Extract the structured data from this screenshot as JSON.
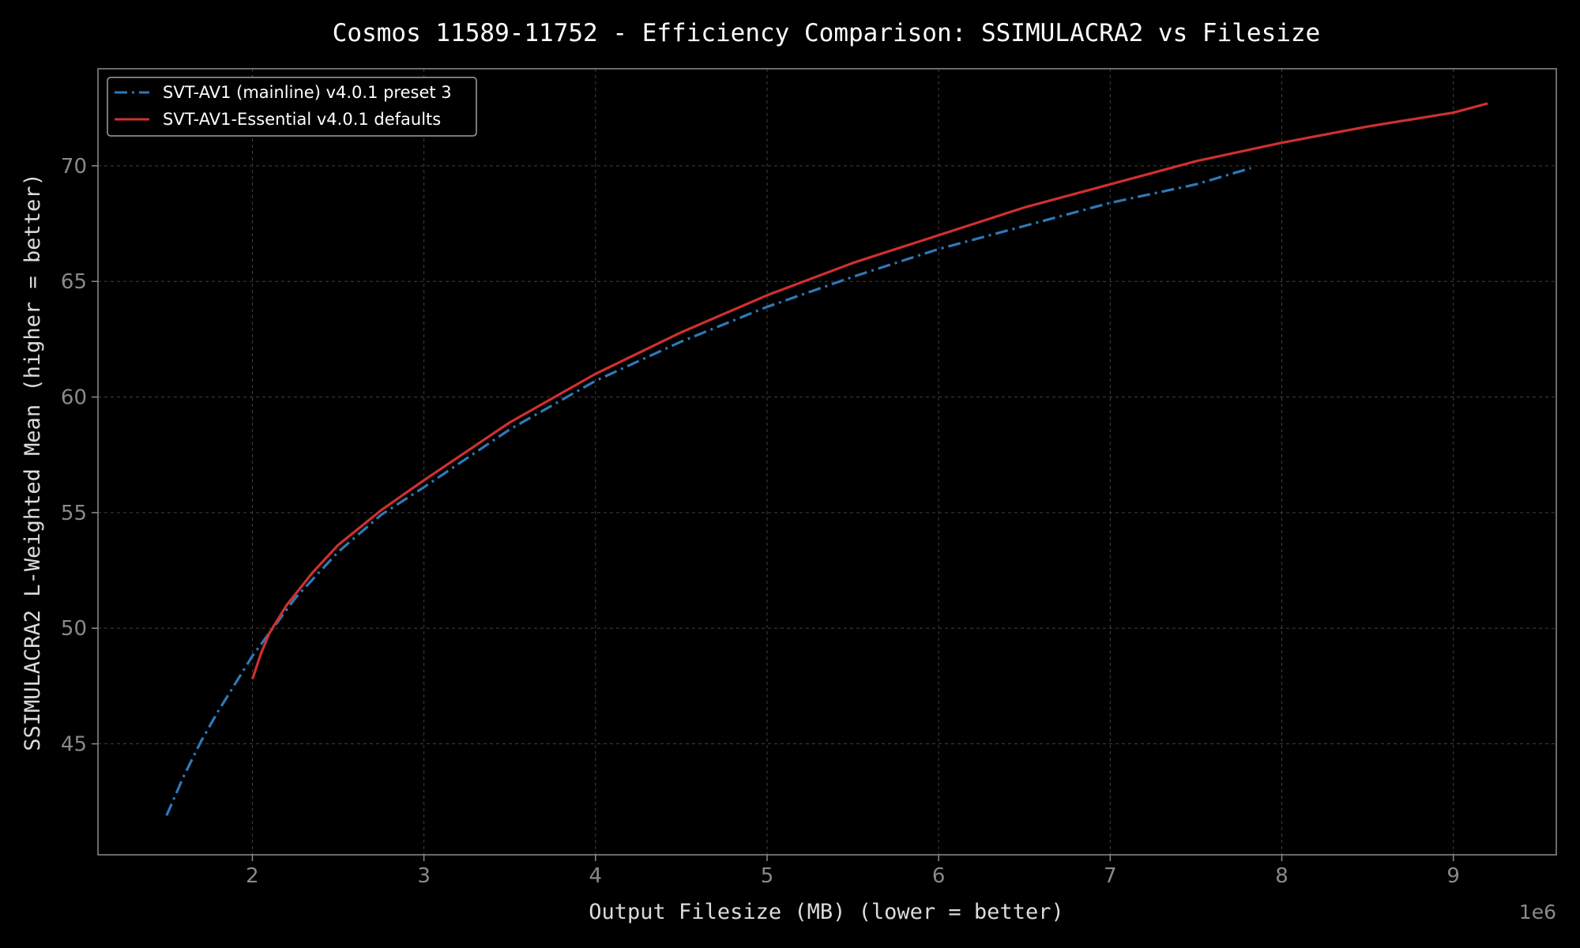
{
  "chart_data": {
    "type": "line",
    "title": "Cosmos 11589-11752 - Efficiency Comparison: SSIMULACRA2 vs Filesize",
    "xlabel": "Output Filesize (MB) (lower = better)",
    "ylabel": "SSIMULACRA2 L-Weighted Mean (higher = better)",
    "x_offset_label": "1e6",
    "xlim": [
      1100000,
      9600000
    ],
    "ylim": [
      40.2,
      74.2
    ],
    "x_ticks": [
      2,
      3,
      4,
      5,
      6,
      7,
      8,
      9
    ],
    "x_tick_multiplier": 1000000,
    "y_ticks": [
      45,
      50,
      55,
      60,
      65,
      70
    ],
    "grid": true,
    "legend_position": "top-left",
    "series": [
      {
        "name": "SVT-AV1 (mainline) v4.0.1 preset 3",
        "color": "#2f79b8",
        "line_style": "dashdot",
        "x": [
          1500000,
          1600000,
          1700000,
          1800000,
          2000000,
          2250000,
          2500000,
          2750000,
          3000000,
          3500000,
          4000000,
          4500000,
          5000000,
          5500000,
          6000000,
          6500000,
          7000000,
          7500000,
          7820000
        ],
        "y": [
          41.9,
          43.6,
          45.1,
          46.4,
          48.8,
          51.3,
          53.3,
          54.9,
          56.1,
          58.6,
          60.7,
          62.4,
          63.9,
          65.2,
          66.4,
          67.4,
          68.4,
          69.2,
          69.9
        ]
      },
      {
        "name": "SVT-AV1-Essential v4.0.1 defaults",
        "color": "#d03030",
        "line_style": "solid",
        "x": [
          2000000,
          2050000,
          2100000,
          2200000,
          2350000,
          2500000,
          2750000,
          3000000,
          3500000,
          4000000,
          4500000,
          5000000,
          5500000,
          6000000,
          6500000,
          7000000,
          7500000,
          8000000,
          8500000,
          9000000,
          9200000
        ],
        "y": [
          47.8,
          48.9,
          49.8,
          51.0,
          52.4,
          53.6,
          55.1,
          56.4,
          58.9,
          61.0,
          62.8,
          64.4,
          65.8,
          67.0,
          68.2,
          69.2,
          70.2,
          71.0,
          71.7,
          72.3,
          72.7
        ]
      }
    ]
  },
  "colors": {
    "background": "#000000",
    "axes_border": "#8c8c8c",
    "grid": "#404040",
    "tick_label": "#8a8a8a",
    "axis_label": "#dcdcdc",
    "title": "#ffffff",
    "legend_text": "#ffffff",
    "legend_border": "#a0a0a0"
  }
}
